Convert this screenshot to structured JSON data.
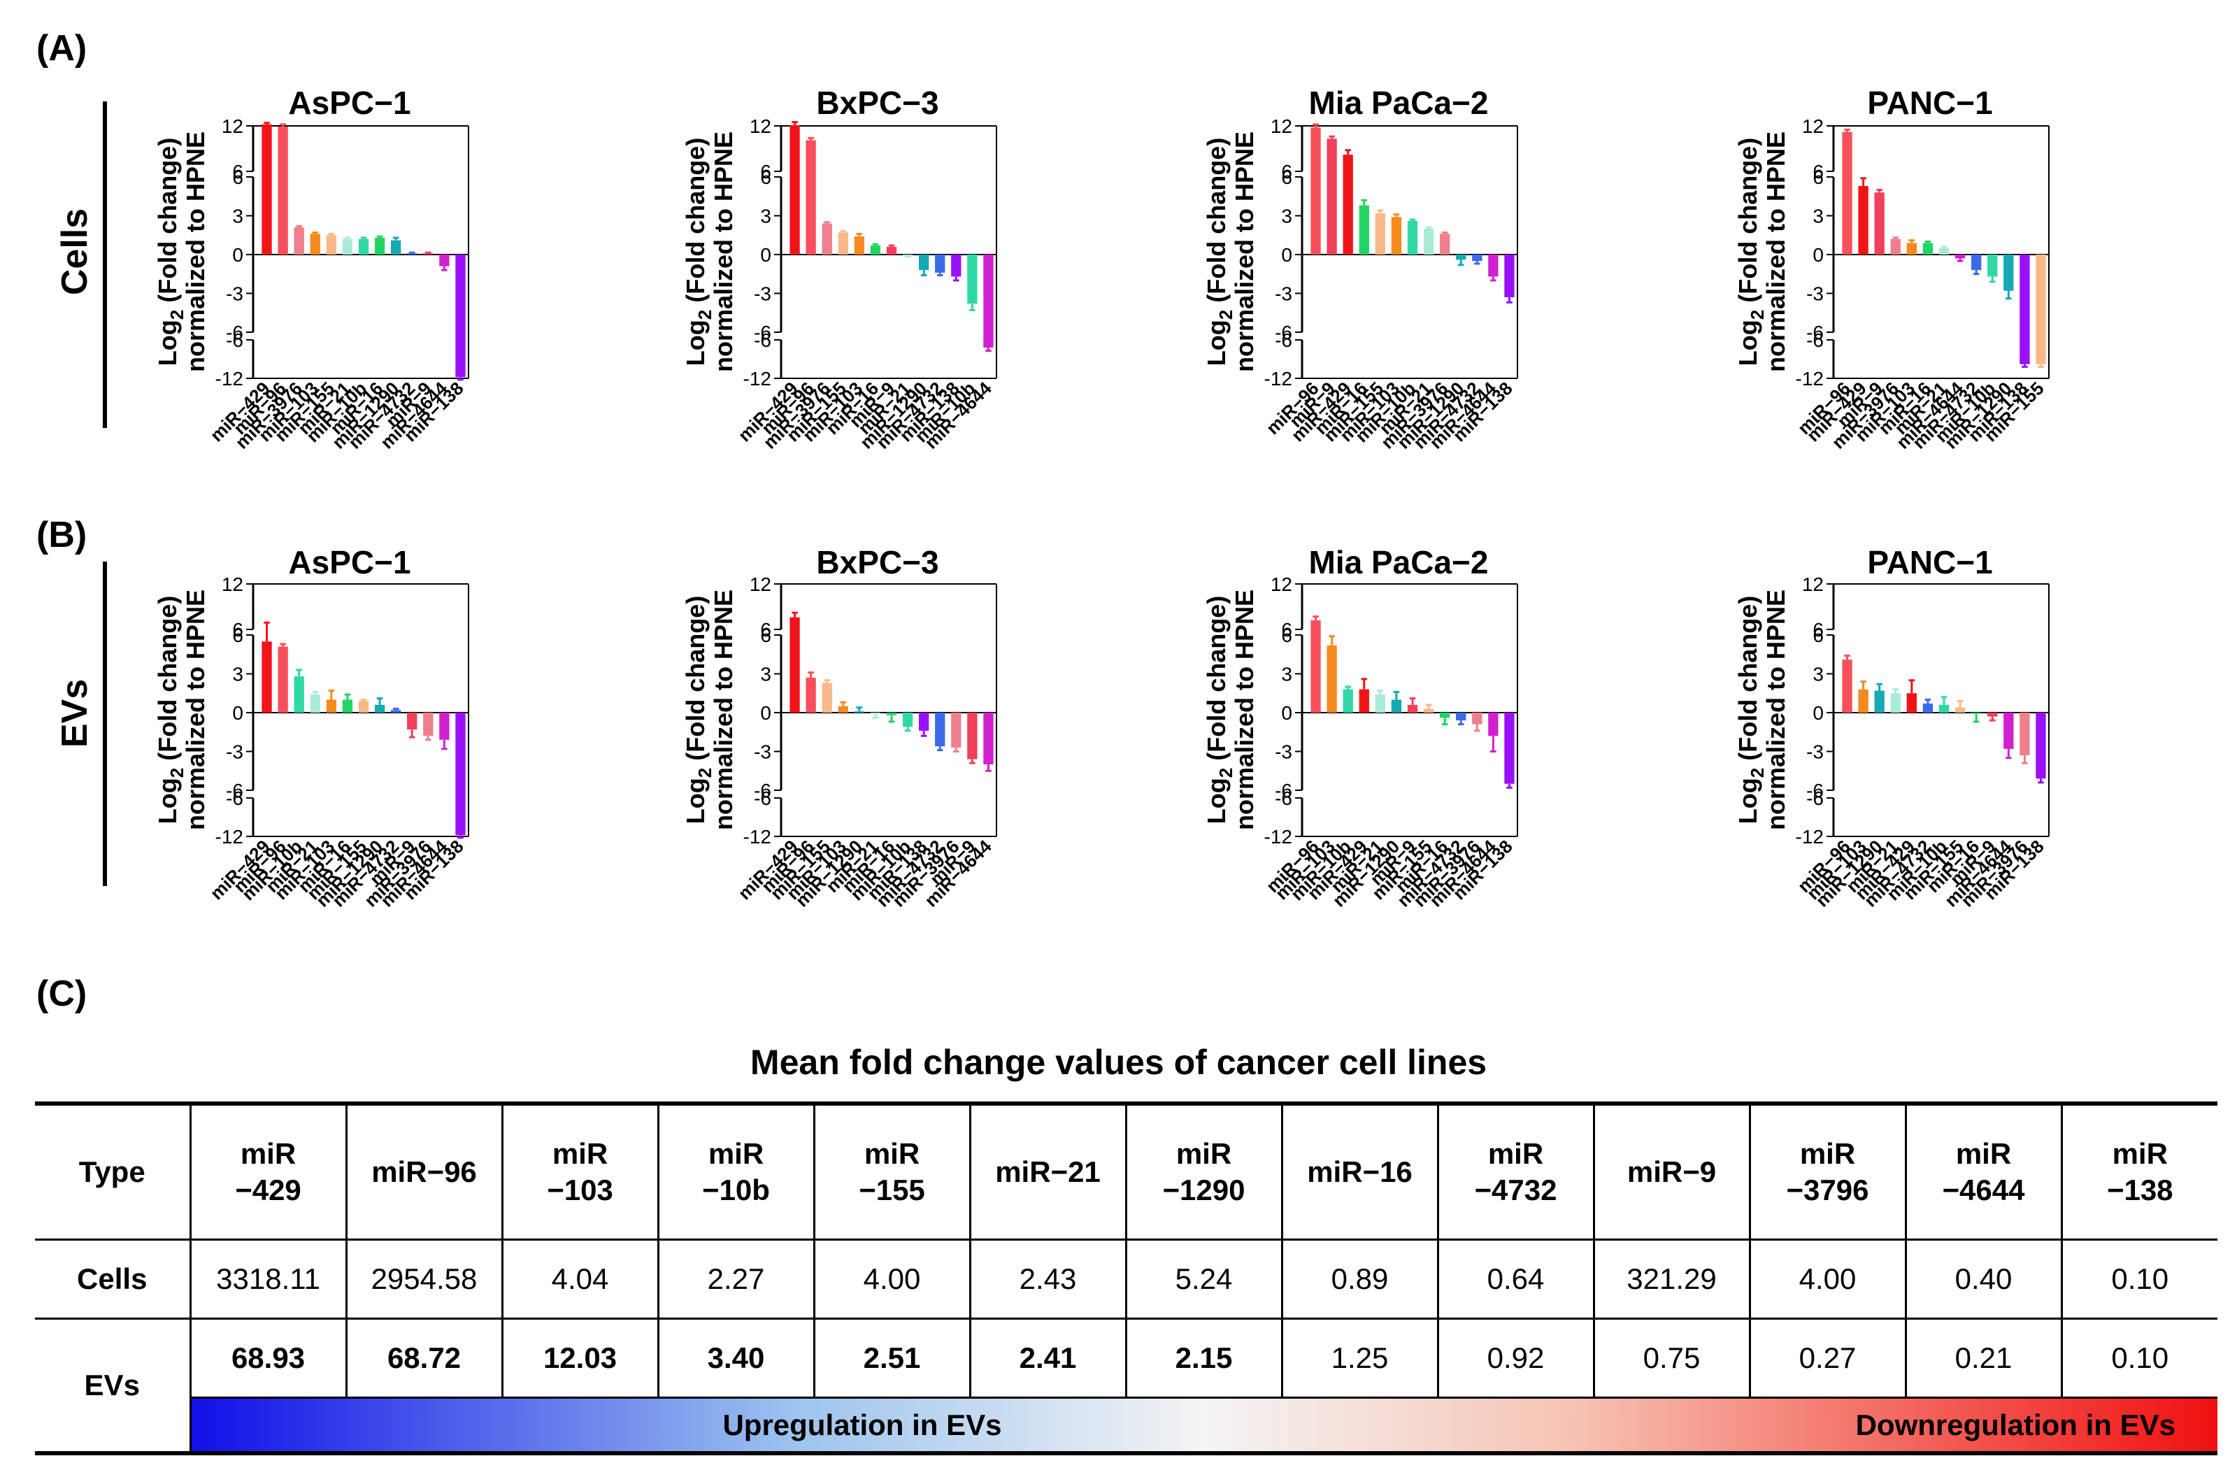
{
  "panel_labels": {
    "a": "(A)",
    "b": "(B)",
    "c": "(C)"
  },
  "row_labels": {
    "cells": "Cells",
    "evs": "EVs"
  },
  "y_axis_label": {
    "line1_prefix": "Log",
    "line1_sub": "2",
    "line1_suffix": " (Fold change)",
    "line2": "normalized to HPNE"
  },
  "y_ticks": {
    "upper": [
      "12",
      "6"
    ],
    "main": [
      "6",
      "3",
      "0",
      "-3",
      "-6"
    ],
    "lower": [
      "-6",
      "-12"
    ]
  },
  "colors": {
    "miR-429": "#f01418",
    "miR-96": "#f8505a",
    "miR-9": "#f0405a",
    "miR-3976": "#f07f8c",
    "miR-103": "#f58a1e",
    "miR-155": "#f8b98a",
    "miR-21": "#a8ecd8",
    "miR-10b": "#30d8a6",
    "miR-16": "#22d464",
    "miR-1290": "#16a8b4",
    "miR-4732": "#3c6ae8",
    "miR-4644": "#d020d0",
    "miR-138": "#9a10f8"
  },
  "chart_data": [
    {
      "type": "bar",
      "title": "AsPC−1",
      "row": "Cells",
      "categories": [
        "miR−429",
        "miR−96",
        "miR−3976",
        "miR−103",
        "miR−155",
        "miR−21",
        "miR−10b",
        "miR−16",
        "miR−1290",
        "miR−4732",
        "miR−9",
        "miR−4644",
        "miR−138"
      ],
      "keys": [
        "miR-429",
        "miR-96",
        "miR-3976",
        "miR-103",
        "miR-155",
        "miR-21",
        "miR-10b",
        "miR-16",
        "miR-1290",
        "miR-4732",
        "miR-9",
        "miR-4644",
        "miR-138"
      ],
      "values": [
        12.2,
        11.9,
        2.1,
        1.6,
        1.5,
        1.2,
        1.2,
        1.3,
        1.1,
        0.1,
        0.1,
        -0.9,
        -11.8
      ],
      "errors": [
        0.2,
        0.3,
        0.1,
        0.1,
        0.1,
        0.1,
        0.1,
        0.1,
        0.2,
        0.05,
        0.05,
        0.3,
        0.4
      ],
      "ylim": [
        -12,
        12
      ]
    },
    {
      "type": "bar",
      "title": "BxPC−3",
      "row": "Cells",
      "categories": [
        "miR−429",
        "miR−96",
        "miR−3976",
        "miR−155",
        "miR−103",
        "miR−16",
        "miR−9",
        "miR−21",
        "miR−1290",
        "miR−4732",
        "miR−138",
        "miR−10b",
        "miR−4644"
      ],
      "keys": [
        "miR-429",
        "miR-96",
        "miR-3976",
        "miR-155",
        "miR-103",
        "miR-16",
        "miR-9",
        "miR-21",
        "miR-1290",
        "miR-4732",
        "miR-138",
        "miR-10b",
        "miR-4644"
      ],
      "values": [
        12.1,
        10.1,
        2.4,
        1.7,
        1.4,
        0.7,
        0.6,
        -0.1,
        -1.2,
        -1.4,
        -1.7,
        -3.8,
        -7.2
      ],
      "errors": [
        0.4,
        0.3,
        0.1,
        0.1,
        0.2,
        0.1,
        0.1,
        0.05,
        0.4,
        0.2,
        0.3,
        0.5,
        0.5
      ],
      "ylim": [
        -12,
        12
      ]
    },
    {
      "type": "bar",
      "title": "Mia PaCa−2",
      "row": "Cells",
      "categories": [
        "miR−96",
        "miR−9",
        "miR−429",
        "miR−16",
        "miR−155",
        "miR−103",
        "miR−10b",
        "miR−21",
        "miR−3976",
        "miR−1290",
        "miR−4732",
        "miR−4644",
        "miR−138"
      ],
      "keys": [
        "miR-96",
        "miR-9",
        "miR-429",
        "miR-16",
        "miR-155",
        "miR-103",
        "miR-10b",
        "miR-21",
        "miR-3976",
        "miR-1290",
        "miR-4732",
        "miR-4644",
        "miR-138"
      ],
      "values": [
        11.8,
        10.3,
        8.2,
        3.8,
        3.2,
        2.9,
        2.6,
        2.0,
        1.6,
        -0.4,
        -0.5,
        -1.7,
        -3.3
      ],
      "errors": [
        0.4,
        0.3,
        0.6,
        0.4,
        0.2,
        0.2,
        0.1,
        0.1,
        0.1,
        0.4,
        0.2,
        0.3,
        0.4
      ],
      "ylim": [
        -12,
        12
      ]
    },
    {
      "type": "bar",
      "title": "PANC−1",
      "row": "Cells",
      "categories": [
        "miR−96",
        "miR−429",
        "miR−9",
        "miR−3976",
        "miR−103",
        "miR−16",
        "miR−21",
        "miR−4644",
        "miR−4732",
        "miR−10b",
        "miR−1290",
        "miR−138",
        "miR−155"
      ],
      "keys": [
        "miR-96",
        "miR-429",
        "miR-9",
        "miR-3976",
        "miR-103",
        "miR-16",
        "miR-21",
        "miR-4644",
        "miR-4732",
        "miR-10b",
        "miR-1290",
        "miR-138",
        "miR-155"
      ],
      "values": [
        11.2,
        5.3,
        4.8,
        1.2,
        0.9,
        0.9,
        0.5,
        -0.3,
        -1.2,
        -1.7,
        -2.8,
        -9.8,
        -9.8
      ],
      "errors": [
        0.3,
        0.6,
        0.2,
        0.1,
        0.2,
        0.1,
        0.1,
        0.2,
        0.3,
        0.4,
        0.6,
        0.4,
        0.4
      ],
      "ylim": [
        -12,
        12
      ]
    },
    {
      "type": "bar",
      "title": "AsPC−1",
      "row": "EVs",
      "categories": [
        "miR−429",
        "miR−96",
        "miR−10b",
        "miR−21",
        "miR−103",
        "miR−16",
        "miR−155",
        "miR−1290",
        "miR−4732",
        "miR−9",
        "miR−3976",
        "miR−4644",
        "miR−138"
      ],
      "keys": [
        "miR-429",
        "miR-96",
        "miR-10b",
        "miR-21",
        "miR-103",
        "miR-16",
        "miR-155",
        "miR-1290",
        "miR-4732",
        "miR-9",
        "miR-3976",
        "miR-4644",
        "miR-138"
      ],
      "values": [
        5.5,
        5.1,
        2.8,
        1.4,
        1.0,
        1.0,
        0.9,
        0.6,
        0.2,
        -1.3,
        -1.8,
        -2.1,
        -11.8
      ],
      "errors": [
        1.4,
        0.2,
        0.5,
        0.2,
        0.7,
        0.4,
        0.1,
        0.5,
        0.1,
        0.6,
        0.3,
        0.7,
        0.4
      ],
      "ylim": [
        -12,
        12
      ]
    },
    {
      "type": "bar",
      "title": "BxPC−3",
      "row": "EVs",
      "categories": [
        "miR−429",
        "miR−96",
        "miR−155",
        "miR−103",
        "miR−1290",
        "miR−21",
        "miR−16",
        "miR−10b",
        "miR−138",
        "miR−4732",
        "miR−3976",
        "miR−9",
        "miR−4644"
      ],
      "keys": [
        "miR-429",
        "miR-96",
        "miR-155",
        "miR-103",
        "miR-1290",
        "miR-21",
        "miR-16",
        "miR-10b",
        "miR-138",
        "miR-4732",
        "miR-3976",
        "miR-9",
        "miR-4644"
      ],
      "values": [
        7.6,
        2.7,
        2.3,
        0.5,
        0.1,
        -0.1,
        -0.2,
        -1.1,
        -1.4,
        -2.6,
        -2.7,
        -3.6,
        -4.0
      ],
      "errors": [
        0.6,
        0.4,
        0.2,
        0.3,
        0.3,
        0.3,
        0.5,
        0.3,
        0.4,
        0.3,
        0.3,
        0.3,
        0.5
      ],
      "ylim": [
        -12,
        12
      ]
    },
    {
      "type": "bar",
      "title": "Mia PaCa−2",
      "row": "EVs",
      "categories": [
        "miR−96",
        "miR−103",
        "miR−10b",
        "miR−429",
        "miR−21",
        "miR−1290",
        "miR−9",
        "miR−155",
        "miR−16",
        "miR−4732",
        "miR−3976",
        "miR−4644",
        "miR−138"
      ],
      "keys": [
        "miR-96",
        "miR-103",
        "miR-10b",
        "miR-429",
        "miR-21",
        "miR-1290",
        "miR-9",
        "miR-155",
        "miR-16",
        "miR-4732",
        "miR-3976",
        "miR-4644",
        "miR-138"
      ],
      "values": [
        7.2,
        5.2,
        1.8,
        1.8,
        1.4,
        1.0,
        0.6,
        0.3,
        -0.4,
        -0.6,
        -0.9,
        -1.8,
        -5.5
      ],
      "errors": [
        0.5,
        0.7,
        0.2,
        0.8,
        0.3,
        0.6,
        0.5,
        0.3,
        0.5,
        0.3,
        0.5,
        1.2,
        0.3
      ],
      "ylim": [
        -12,
        12
      ]
    },
    {
      "type": "bar",
      "title": "PANC−1",
      "row": "EVs",
      "categories": [
        "miR−96",
        "miR−103",
        "miR−1290",
        "miR−21",
        "miR−429",
        "miR−4732",
        "miR−10b",
        "miR−155",
        "miR−16",
        "miR−9",
        "miR−4644",
        "miR−3976",
        "miR−138"
      ],
      "keys": [
        "miR-96",
        "miR-103",
        "miR-1290",
        "miR-21",
        "miR-429",
        "miR-4732",
        "miR-10b",
        "miR-155",
        "miR-16",
        "miR-9",
        "miR-4644",
        "miR-3976",
        "miR-138"
      ],
      "values": [
        4.1,
        1.8,
        1.7,
        1.5,
        1.5,
        0.7,
        0.6,
        0.4,
        -0.1,
        -0.3,
        -2.8,
        -3.3,
        -5.1
      ],
      "errors": [
        0.3,
        0.6,
        0.5,
        0.3,
        1.0,
        0.3,
        0.6,
        0.5,
        0.6,
        0.3,
        0.7,
        0.6,
        0.3
      ],
      "ylim": [
        -12,
        12
      ]
    },
    {
      "type": "table",
      "title": "Mean fold change values of cancer cell lines",
      "header_first": "Type",
      "columns": [
        [
          "miR",
          "−429"
        ],
        [
          "miR−96"
        ],
        [
          "miR",
          "−103"
        ],
        [
          "miR",
          "−10b"
        ],
        [
          "miR",
          "−155"
        ],
        [
          "miR−21"
        ],
        [
          "miR",
          "−1290"
        ],
        [
          "miR−16"
        ],
        [
          "miR",
          "−4732"
        ],
        [
          "miR−9"
        ],
        [
          "miR",
          "−3796"
        ],
        [
          "miR",
          "−4644"
        ],
        [
          "miR",
          "−138"
        ]
      ],
      "rows": [
        {
          "label": "Cells",
          "values": [
            "3318.11",
            "2954.58",
            "4.04",
            "2.27",
            "4.00",
            "2.43",
            "5.24",
            "0.89",
            "0.64",
            "321.29",
            "4.00",
            "0.40",
            "0.10"
          ]
        },
        {
          "label": "EVs",
          "values": [
            "68.93",
            "68.72",
            "12.03",
            "3.40",
            "2.51",
            "2.41",
            "2.15",
            "1.25",
            "0.92",
            "0.75",
            "0.27",
            "0.21",
            "0.10"
          ],
          "bold_count": 7
        }
      ],
      "legend_up": "Upregulation in EVs",
      "legend_down": "Downregulation in EVs"
    }
  ]
}
